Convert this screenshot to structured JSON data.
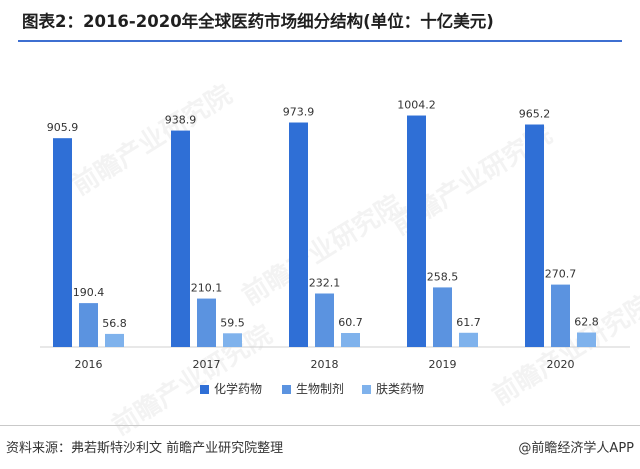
{
  "title": "图表2：2016-2020年全球医药市场细分结构(单位：十亿美元)",
  "source": "资料来源：弗若斯特沙利文 前瞻产业研究院整理",
  "credit": "@前瞻经济学人APP",
  "watermark": "前瞻产业研究院",
  "colors": {
    "accent_rule": "#3d6fd1",
    "series": [
      "#2f6fd6",
      "#5b93e0",
      "#7fb2ec"
    ]
  },
  "chart_data": {
    "type": "bar",
    "categories": [
      "2016",
      "2017",
      "2018",
      "2019",
      "2020"
    ],
    "series": [
      {
        "name": "化学药物",
        "values": [
          905.9,
          938.9,
          973.9,
          1004.2,
          965.2
        ],
        "labels": [
          "905.9",
          "938.9",
          "973.9",
          "1004.2",
          "965.2"
        ]
      },
      {
        "name": "生物制剂",
        "values": [
          190.4,
          210.1,
          232.1,
          258.5,
          270.7
        ],
        "labels": [
          "190.4",
          "210.1",
          "232.1",
          "258.5",
          "270.7"
        ]
      },
      {
        "name": "肤类药物",
        "values": [
          56.8,
          59.5,
          60.7,
          61.7,
          62.8
        ],
        "labels": [
          "56.8",
          "59.5",
          "60.7",
          "61.7",
          "62.8"
        ]
      }
    ],
    "ylim": [
      0,
      1180
    ],
    "grid": false,
    "legend_position": "bottom"
  }
}
